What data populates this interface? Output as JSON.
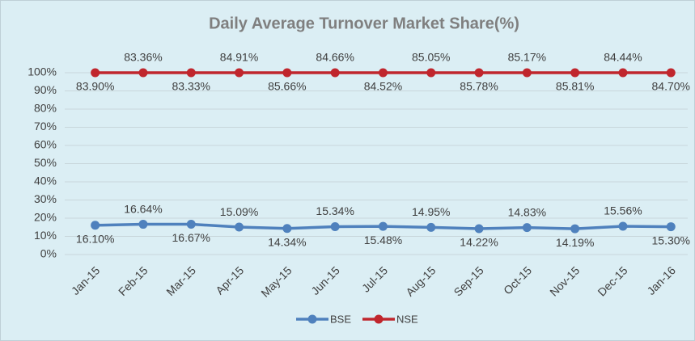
{
  "chart_data": {
    "type": "line",
    "stacked": true,
    "title": "Daily Average Turnover Market Share(%)",
    "categories": [
      "Jan-15",
      "Feb-15",
      "Mar-15",
      "Apr-15",
      "May-15",
      "Jun-15",
      "Jul-15",
      "Aug-15",
      "Sep-15",
      "Oct-15",
      "Nov-15",
      "Dec-15",
      "Jan-16"
    ],
    "series": [
      {
        "name": "BSE",
        "color": "#4f81bd",
        "values": [
          16.1,
          16.64,
          16.67,
          15.09,
          14.34,
          15.34,
          15.48,
          14.95,
          14.22,
          14.83,
          14.19,
          15.56,
          15.3
        ],
        "value_labels": [
          "16.10%",
          "16.64%",
          "16.67%",
          "15.09%",
          "14.34%",
          "15.34%",
          "15.48%",
          "14.95%",
          "14.22%",
          "14.83%",
          "14.19%",
          "15.56%",
          "15.30%"
        ]
      },
      {
        "name": "NSE",
        "color": "#c0262d",
        "values": [
          83.9,
          83.36,
          83.33,
          84.91,
          85.66,
          84.66,
          84.52,
          85.05,
          85.78,
          85.17,
          85.81,
          84.44,
          84.7
        ],
        "value_labels": [
          "83.90%",
          "83.36%",
          "83.33%",
          "84.91%",
          "85.66%",
          "84.66%",
          "84.52%",
          "85.05%",
          "85.78%",
          "85.17%",
          "85.81%",
          "84.44%",
          "84.70%"
        ]
      }
    ],
    "ylim": [
      0,
      100
    ],
    "yticks": [
      {
        "value": 0,
        "label": "0%"
      },
      {
        "value": 10,
        "label": "10%"
      },
      {
        "value": 20,
        "label": "20%"
      },
      {
        "value": 30,
        "label": "30%"
      },
      {
        "value": 40,
        "label": "40%"
      },
      {
        "value": 50,
        "label": "50%"
      },
      {
        "value": 60,
        "label": "60%"
      },
      {
        "value": 70,
        "label": "70%"
      },
      {
        "value": 80,
        "label": "80%"
      },
      {
        "value": 90,
        "label": "90%"
      },
      {
        "value": 100,
        "label": "100%"
      }
    ],
    "grid": true,
    "legend": "bottom"
  }
}
